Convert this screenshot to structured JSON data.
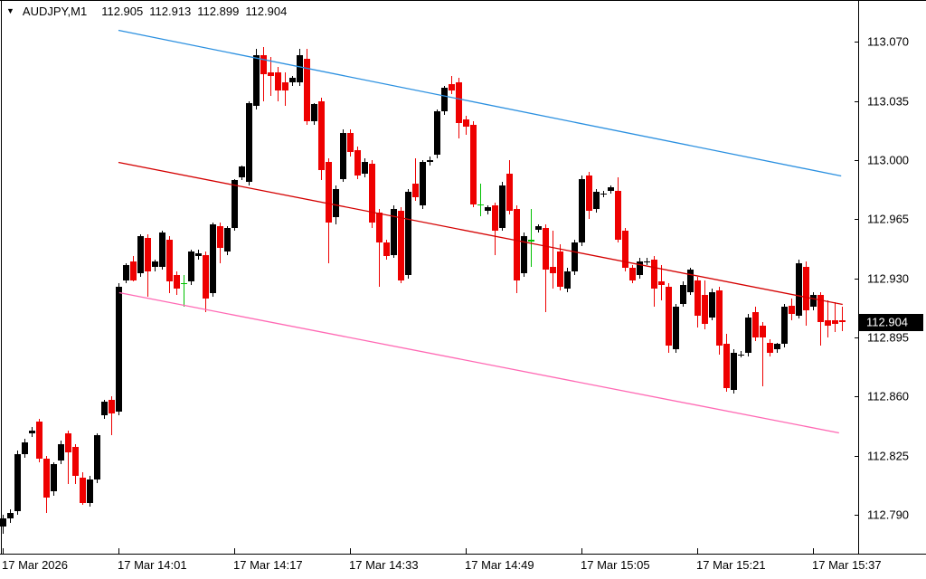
{
  "header": {
    "symbol_period": "AUDJPY,M1",
    "open": "112.905",
    "high": "112.913",
    "low": "112.899",
    "close": "112.904"
  },
  "price_axis": {
    "ticks": [
      "113.070",
      "113.035",
      "113.000",
      "112.965",
      "112.930",
      "112.895",
      "112.860",
      "112.825",
      "112.790"
    ],
    "current_price_label": "112.904"
  },
  "time_axis": {
    "labels": [
      "17 Mar 2026",
      "17 Mar 14:01",
      "17 Mar 14:17",
      "17 Mar 14:33",
      "17 Mar 14:49",
      "17 Mar 15:05",
      "17 Mar 15:21",
      "17 Mar 15:37"
    ],
    "label_candle_indices": [
      0,
      16,
      32,
      48,
      64,
      80,
      96,
      112
    ]
  },
  "colors": {
    "background": "#ffffff",
    "bull_candle": "#000000",
    "bear_candle": "#ee0000",
    "doji_green": "#00c000",
    "trend_upper": "#2b90e0",
    "trend_middle": "#d40000",
    "trend_lower": "#ff69b4",
    "axis": "#000000",
    "price_label_bg": "#000000",
    "price_label_text": "#ffffff"
  },
  "chart_data": {
    "type": "candlestick",
    "symbol": "AUDJPY",
    "timeframe": "M1",
    "date": "17 Mar 2026",
    "time_first_candle": "13:45",
    "time_last_candle": "15:41",
    "interval_minutes": 1,
    "price_axis_range": [
      112.79,
      113.07
    ],
    "price_tick_step": 0.035,
    "current_price": 112.904,
    "candles": [
      [
        112.783,
        112.79,
        112.779,
        112.788
      ],
      [
        112.788,
        112.793,
        112.785,
        112.791
      ],
      [
        112.792,
        112.828,
        112.79,
        112.826
      ],
      [
        112.826,
        112.835,
        112.824,
        112.833
      ],
      [
        112.838,
        112.842,
        112.836,
        112.84
      ],
      [
        112.845,
        112.847,
        112.821,
        112.823
      ],
      [
        112.823,
        112.825,
        112.791,
        112.8
      ],
      [
        112.804,
        112.821,
        112.801,
        112.82
      ],
      [
        112.822,
        112.834,
        112.82,
        112.832
      ],
      [
        112.838,
        112.84,
        112.808,
        112.827
      ],
      [
        112.83,
        112.832,
        112.808,
        112.813
      ],
      [
        112.812,
        112.815,
        112.796,
        112.797
      ],
      [
        112.797,
        112.813,
        112.795,
        112.811
      ],
      [
        112.811,
        112.838,
        112.809,
        112.837
      ],
      [
        112.849,
        112.858,
        112.847,
        112.857
      ],
      [
        112.858,
        112.86,
        112.837,
        112.85
      ],
      [
        112.851,
        112.927,
        112.849,
        112.925
      ],
      [
        112.929,
        112.939,
        112.927,
        112.938
      ],
      [
        112.94,
        112.943,
        112.928,
        112.929
      ],
      [
        112.933,
        112.956,
        112.931,
        112.955
      ],
      [
        112.954,
        112.956,
        112.919,
        112.934
      ],
      [
        112.937,
        112.941,
        112.934,
        112.94
      ],
      [
        112.937,
        112.958,
        112.935,
        112.957
      ],
      [
        112.953,
        112.955,
        112.921,
        112.928
      ],
      [
        112.932,
        112.934,
        112.92,
        112.924
      ],
      [
        112.927,
        112.932,
        112.913,
        112.927
      ],
      [
        112.928,
        112.947,
        112.926,
        112.946
      ],
      [
        112.943,
        112.947,
        112.941,
        112.945
      ],
      [
        112.944,
        112.946,
        112.91,
        112.918
      ],
      [
        112.921,
        112.963,
        112.919,
        112.962
      ],
      [
        112.961,
        112.963,
        112.939,
        112.948
      ],
      [
        112.946,
        112.961,
        112.944,
        112.96
      ],
      [
        112.96,
        112.989,
        112.958,
        112.988
      ],
      [
        112.99,
        112.997,
        112.988,
        112.996
      ],
      [
        112.987,
        113.035,
        112.985,
        113.034
      ],
      [
        113.032,
        113.066,
        113.03,
        113.062
      ],
      [
        113.062,
        113.067,
        113.035,
        113.051
      ],
      [
        113.052,
        113.061,
        113.038,
        113.05
      ],
      [
        113.052,
        113.055,
        113.035,
        113.041
      ],
      [
        113.046,
        113.052,
        113.032,
        113.041
      ],
      [
        113.046,
        113.05,
        113.044,
        113.049
      ],
      [
        113.046,
        113.066,
        113.044,
        113.062
      ],
      [
        113.06,
        113.066,
        113.021,
        113.023
      ],
      [
        113.023,
        113.034,
        113.021,
        113.033
      ],
      [
        113.035,
        113.037,
        112.988,
        112.994
      ],
      [
        112.999,
        113.001,
        112.939,
        112.963
      ],
      [
        112.966,
        112.985,
        112.962,
        112.983
      ],
      [
        112.989,
        113.018,
        112.987,
        113.016
      ],
      [
        113.016,
        113.018,
        113.002,
        113.005
      ],
      [
        113.006,
        113.008,
        112.989,
        112.991
      ],
      [
        112.992,
        113.001,
        112.99,
        112.999
      ],
      [
        112.998,
        113.0,
        112.96,
        112.963
      ],
      [
        112.969,
        112.971,
        112.925,
        112.951
      ],
      [
        112.951,
        112.953,
        112.941,
        112.943
      ],
      [
        112.944,
        112.973,
        112.942,
        112.971
      ],
      [
        112.97,
        112.972,
        112.927,
        112.929
      ],
      [
        112.932,
        112.983,
        112.93,
        112.981
      ],
      [
        112.986,
        113.001,
        112.976,
        112.978
      ],
      [
        112.973,
        113.0,
        112.971,
        112.999
      ],
      [
        112.999,
        113.002,
        112.997,
        113.0
      ],
      [
        113.003,
        113.03,
        113.001,
        113.029
      ],
      [
        113.029,
        113.044,
        113.027,
        113.043
      ],
      [
        113.045,
        113.05,
        113.039,
        113.041
      ],
      [
        113.046,
        113.049,
        113.013,
        113.022
      ],
      [
        113.024,
        113.026,
        113.015,
        113.02
      ],
      [
        113.021,
        113.023,
        112.972,
        112.974
      ],
      [
        112.974,
        112.986,
        112.967,
        112.974
      ],
      [
        112.97,
        112.973,
        112.968,
        112.972
      ],
      [
        112.973,
        112.975,
        112.944,
        112.958
      ],
      [
        112.96,
        112.987,
        112.958,
        112.985
      ],
      [
        112.992,
        113.0,
        112.968,
        112.97
      ],
      [
        112.971,
        112.973,
        112.921,
        112.929
      ],
      [
        112.933,
        112.957,
        112.931,
        112.955
      ],
      [
        112.952,
        112.971,
        112.937,
        112.953
      ],
      [
        112.959,
        112.962,
        112.957,
        112.961
      ],
      [
        112.96,
        112.962,
        112.91,
        112.935
      ],
      [
        112.937,
        112.958,
        112.924,
        112.933
      ],
      [
        112.946,
        112.95,
        112.923,
        112.925
      ],
      [
        112.924,
        112.936,
        112.922,
        112.934
      ],
      [
        112.934,
        112.953,
        112.932,
        112.951
      ],
      [
        112.951,
        112.991,
        112.949,
        112.989
      ],
      [
        112.991,
        112.993,
        112.965,
        112.97
      ],
      [
        112.971,
        112.983,
        112.969,
        112.981
      ],
      [
        112.98,
        112.982,
        112.978,
        112.98
      ],
      [
        112.982,
        112.985,
        112.98,
        112.984
      ],
      [
        112.982,
        112.99,
        112.951,
        112.953
      ],
      [
        112.958,
        112.96,
        112.934,
        112.936
      ],
      [
        112.936,
        112.938,
        112.927,
        112.929
      ],
      [
        112.932,
        112.942,
        112.93,
        112.94
      ],
      [
        112.94,
        112.942,
        112.938,
        112.94
      ],
      [
        112.941,
        112.943,
        112.913,
        112.924
      ],
      [
        112.928,
        112.938,
        112.917,
        112.926
      ],
      [
        112.925,
        112.927,
        112.886,
        112.89
      ],
      [
        112.888,
        112.915,
        112.886,
        112.913
      ],
      [
        112.915,
        112.928,
        112.913,
        112.926
      ],
      [
        112.922,
        112.936,
        112.92,
        112.935
      ],
      [
        112.929,
        112.931,
        112.901,
        112.908
      ],
      [
        112.92,
        112.929,
        112.9,
        112.903
      ],
      [
        112.907,
        112.924,
        112.905,
        112.922
      ],
      [
        112.923,
        112.925,
        112.885,
        112.89
      ],
      [
        112.891,
        112.897,
        112.863,
        112.865
      ],
      [
        112.864,
        112.888,
        112.862,
        112.886
      ],
      [
        112.885,
        112.887,
        112.883,
        112.885
      ],
      [
        112.886,
        112.909,
        112.884,
        112.907
      ],
      [
        112.91,
        112.913,
        112.893,
        112.895
      ],
      [
        112.902,
        112.904,
        112.866,
        112.895
      ],
      [
        112.892,
        112.894,
        112.884,
        112.886
      ],
      [
        112.888,
        112.892,
        112.886,
        112.891
      ],
      [
        112.891,
        112.915,
        112.889,
        112.913
      ],
      [
        112.914,
        112.918,
        112.905,
        112.909
      ],
      [
        112.908,
        112.941,
        112.906,
        112.939
      ],
      [
        112.937,
        112.94,
        112.902,
        112.911
      ],
      [
        112.913,
        112.922,
        112.911,
        112.92
      ],
      [
        112.92,
        112.922,
        112.89,
        112.904
      ],
      [
        112.905,
        112.917,
        112.895,
        112.902
      ],
      [
        112.905,
        112.916,
        112.898,
        112.903
      ],
      [
        112.905,
        112.913,
        112.899,
        112.904
      ]
    ],
    "green_doji_indices": [
      25,
      66,
      73
    ],
    "trendlines": [
      {
        "name": "descending-channel-upper",
        "color_key": "trend_upper",
        "from": {
          "index": 16,
          "price": 113.077
        },
        "to": {
          "index": 115.9,
          "price": 112.991
        }
      },
      {
        "name": "descending-channel-middle",
        "color_key": "trend_middle",
        "from": {
          "index": 16,
          "price": 112.999
        },
        "to": {
          "index": 116.1,
          "price": 112.915
        }
      },
      {
        "name": "descending-channel-lower",
        "color_key": "trend_lower",
        "from": {
          "index": 16.1,
          "price": 112.922
        },
        "to": {
          "index": 115.6,
          "price": 112.839
        }
      }
    ]
  }
}
